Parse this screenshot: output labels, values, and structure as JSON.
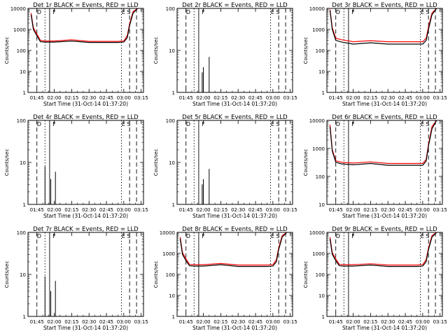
{
  "xlabel": "Start Time (31-Oct-14 01:37:20)",
  "ylabel": "Counts/sec",
  "x_ticks": [
    "01:45",
    "02:00",
    "02:15",
    "02:30",
    "02:45",
    "03:00",
    "03:15"
  ],
  "colors": {
    "events": "#000000",
    "lld": "#ff0000"
  },
  "chart_data": [
    {
      "type": "line",
      "title": "Det 1r BLACK = Events, RED = LLD",
      "y_scale": "log",
      "ylim": [
        1,
        10000
      ],
      "y_ticks": [
        "1",
        "10",
        "100",
        "1000",
        "10000"
      ],
      "markers": {
        "dash": [
          "01:45",
          "03:05",
          "03:11"
        ],
        "dot": [
          "01:52",
          "02:58"
        ],
        "solid": [
          "01:56"
        ]
      },
      "marker_labels": [
        {
          "at": "01:47",
          "text": "D"
        },
        {
          "at": "02:00",
          "text": "F"
        },
        {
          "at": "03:02",
          "text": "E S"
        }
      ],
      "series": [
        {
          "name": "Events",
          "x": [
            "01:40",
            "01:42",
            "01:45",
            "01:48",
            "01:52",
            "02:00",
            "02:15",
            "02:30",
            "02:45",
            "02:55",
            "03:00",
            "03:03",
            "03:05",
            "03:08",
            "03:12"
          ],
          "y": [
            5000,
            1000,
            500,
            260,
            250,
            250,
            280,
            240,
            240,
            240,
            250,
            400,
            1500,
            6000,
            10000
          ]
        },
        {
          "name": "LLD",
          "x": [
            "01:40",
            "01:42",
            "01:45",
            "01:48",
            "01:52",
            "02:00",
            "02:15",
            "02:30",
            "02:45",
            "02:55",
            "03:00",
            "03:03",
            "03:05",
            "03:08",
            "03:12"
          ],
          "y": [
            6000,
            1200,
            600,
            300,
            280,
            280,
            320,
            270,
            270,
            270,
            280,
            500,
            1800,
            7000,
            10000
          ]
        }
      ]
    },
    {
      "type": "line",
      "title": "Det 2r BLACK = Events, RED = LLD",
      "y_scale": "log",
      "ylim": [
        1,
        100
      ],
      "y_ticks": [
        "1",
        "10",
        "100"
      ],
      "markers": {
        "dash": [
          "01:45",
          "03:05",
          "03:11"
        ],
        "dot": [
          "01:52",
          "02:58"
        ],
        "solid": [
          "01:56"
        ]
      },
      "marker_labels": [
        {
          "at": "01:47",
          "text": "D"
        },
        {
          "at": "02:00",
          "text": "F"
        },
        {
          "at": "03:02",
          "text": "E S"
        }
      ],
      "spikes": [
        {
          "x": "01:59",
          "y": 3
        },
        {
          "x": "02:00",
          "y": 4
        },
        {
          "x": "02:05",
          "y": 7
        }
      ]
    },
    {
      "type": "line",
      "title": "Det 3r BLACK = Events, RED = LLD",
      "y_scale": "log",
      "ylim": [
        1,
        10000
      ],
      "y_ticks": [
        "1",
        "10",
        "100",
        "1000",
        "10000"
      ],
      "markers": {
        "dash": [
          "01:45",
          "03:05",
          "03:11"
        ],
        "dot": [
          "01:52",
          "02:58"
        ],
        "solid": [
          "01:56"
        ]
      },
      "marker_labels": [
        {
          "at": "01:47",
          "text": "D"
        },
        {
          "at": "02:00",
          "text": "F"
        },
        {
          "at": "03:02",
          "text": "E S"
        }
      ],
      "series": [
        {
          "name": "Events",
          "x": [
            "01:40",
            "01:42",
            "01:45",
            "01:50",
            "02:00",
            "02:15",
            "02:30",
            "02:45",
            "03:00",
            "03:03",
            "03:05",
            "03:08",
            "03:12"
          ],
          "y": [
            8000,
            1000,
            300,
            250,
            200,
            230,
            200,
            200,
            200,
            300,
            1000,
            5000,
            10000
          ]
        },
        {
          "name": "LLD",
          "x": [
            "01:40",
            "01:42",
            "01:45",
            "01:50",
            "02:00",
            "02:15",
            "02:30",
            "02:45",
            "03:00",
            "03:03",
            "03:05",
            "03:08",
            "03:12"
          ],
          "y": [
            9000,
            1200,
            380,
            320,
            260,
            290,
            260,
            260,
            260,
            380,
            1300,
            6000,
            10000
          ]
        }
      ]
    },
    {
      "type": "line",
      "title": "Det 4r BLACK = Events, RED = LLD",
      "y_scale": "log",
      "ylim": [
        1,
        100
      ],
      "y_ticks": [
        "1",
        "10",
        "100"
      ],
      "markers": {
        "dash": [
          "01:45",
          "03:05",
          "03:11"
        ],
        "dot": [
          "01:52",
          "02:58"
        ],
        "solid": [
          "01:56"
        ]
      },
      "marker_labels": [
        {
          "at": "01:47",
          "text": "D"
        },
        {
          "at": "02:00",
          "text": "F"
        },
        {
          "at": "03:02",
          "text": "E S"
        }
      ],
      "spikes": [
        {
          "x": "01:52",
          "y": 8
        },
        {
          "x": "01:57",
          "y": 4
        },
        {
          "x": "02:01",
          "y": 6
        }
      ]
    },
    {
      "type": "line",
      "title": "Det 5r BLACK = Events, RED = LLD",
      "y_scale": "log",
      "ylim": [
        1,
        100
      ],
      "y_ticks": [
        "1",
        "10",
        "100"
      ],
      "markers": {
        "dash": [
          "01:45",
          "03:05",
          "03:11"
        ],
        "dot": [
          "01:52",
          "02:58"
        ],
        "solid": [
          "01:56"
        ]
      },
      "marker_labels": [
        {
          "at": "01:47",
          "text": "D"
        },
        {
          "at": "02:00",
          "text": "F"
        },
        {
          "at": "03:02",
          "text": "E S"
        }
      ],
      "spikes": [
        {
          "x": "01:59",
          "y": 3
        },
        {
          "x": "02:00",
          "y": 4
        },
        {
          "x": "02:05",
          "y": 7
        }
      ]
    },
    {
      "type": "line",
      "title": "Det 6r BLACK = Events, RED = LLD",
      "y_scale": "log",
      "ylim": [
        10,
        10000
      ],
      "y_ticks": [
        "10",
        "100",
        "1000",
        "10000"
      ],
      "markers": {
        "dash": [
          "01:45",
          "03:05",
          "03:11"
        ],
        "dot": [
          "01:52",
          "02:58"
        ],
        "solid": [
          "01:56"
        ]
      },
      "marker_labels": [
        {
          "at": "01:47",
          "text": "D"
        },
        {
          "at": "02:00",
          "text": "F"
        },
        {
          "at": "03:02",
          "text": "E S"
        }
      ],
      "series": [
        {
          "name": "Events",
          "x": [
            "01:40",
            "01:42",
            "01:45",
            "01:50",
            "02:00",
            "02:15",
            "02:30",
            "02:45",
            "03:00",
            "03:03",
            "03:05",
            "03:08",
            "03:12"
          ],
          "y": [
            6000,
            800,
            320,
            280,
            260,
            290,
            250,
            250,
            250,
            350,
            1200,
            5000,
            10000
          ]
        },
        {
          "name": "LLD",
          "x": [
            "01:40",
            "01:42",
            "01:45",
            "01:50",
            "02:00",
            "02:15",
            "02:30",
            "02:45",
            "03:00",
            "03:03",
            "03:05",
            "03:08",
            "03:12"
          ],
          "y": [
            7000,
            900,
            360,
            320,
            300,
            330,
            290,
            290,
            290,
            400,
            1400,
            6000,
            10000
          ]
        }
      ]
    },
    {
      "type": "line",
      "title": "Det 7r BLACK = Events, RED = LLD",
      "y_scale": "log",
      "ylim": [
        1,
        100
      ],
      "y_ticks": [
        "1",
        "10",
        "100"
      ],
      "markers": {
        "dash": [
          "01:45",
          "03:05",
          "03:11"
        ],
        "dot": [
          "01:52",
          "02:58"
        ],
        "solid": [
          "01:56"
        ]
      },
      "marker_labels": [
        {
          "at": "01:47",
          "text": "D"
        },
        {
          "at": "02:00",
          "text": "F"
        },
        {
          "at": "03:02",
          "text": "E S"
        }
      ],
      "spikes": [
        {
          "x": "01:52",
          "y": 9
        },
        {
          "x": "01:57",
          "y": 4
        },
        {
          "x": "02:01",
          "y": 7
        }
      ]
    },
    {
      "type": "line",
      "title": "Det 8r BLACK = Events, RED = LLD",
      "y_scale": "log",
      "ylim": [
        1,
        10000
      ],
      "y_ticks": [
        "1",
        "10",
        "100",
        "1000",
        "10000"
      ],
      "markers": {
        "dash": [
          "01:45",
          "03:05",
          "03:11"
        ],
        "dot": [
          "01:52",
          "02:58"
        ],
        "solid": [
          "01:56"
        ]
      },
      "marker_labels": [
        {
          "at": "01:47",
          "text": "D"
        },
        {
          "at": "02:00",
          "text": "F"
        },
        {
          "at": "03:02",
          "text": "E S"
        }
      ],
      "series": [
        {
          "name": "Events",
          "x": [
            "01:40",
            "01:42",
            "01:45",
            "01:48",
            "01:52",
            "02:00",
            "02:15",
            "02:30",
            "02:45",
            "02:55",
            "03:00",
            "03:03",
            "03:05",
            "03:08",
            "03:12"
          ],
          "y": [
            5000,
            900,
            450,
            260,
            250,
            250,
            290,
            240,
            240,
            240,
            250,
            400,
            1500,
            6000,
            10000
          ]
        },
        {
          "name": "LLD",
          "x": [
            "01:40",
            "01:42",
            "01:45",
            "01:48",
            "01:52",
            "02:00",
            "02:15",
            "02:30",
            "02:45",
            "02:55",
            "03:00",
            "03:03",
            "03:05",
            "03:08",
            "03:12"
          ],
          "y": [
            6000,
            1100,
            550,
            300,
            290,
            290,
            330,
            280,
            280,
            280,
            290,
            500,
            1800,
            7000,
            10000
          ]
        }
      ]
    },
    {
      "type": "line",
      "title": "Det 9r BLACK = Events, RED = LLD",
      "y_scale": "log",
      "ylim": [
        1,
        10000
      ],
      "y_ticks": [
        "1",
        "10",
        "100",
        "1000",
        "10000"
      ],
      "markers": {
        "dash": [
          "01:45",
          "03:05",
          "03:11"
        ],
        "dot": [
          "01:52",
          "02:58"
        ],
        "solid": [
          "01:56"
        ]
      },
      "marker_labels": [
        {
          "at": "01:47",
          "text": "D"
        },
        {
          "at": "02:00",
          "text": "F"
        },
        {
          "at": "03:02",
          "text": "E S"
        }
      ],
      "series": [
        {
          "name": "Events",
          "x": [
            "01:40",
            "01:42",
            "01:45",
            "01:48",
            "01:52",
            "02:00",
            "02:15",
            "02:30",
            "02:45",
            "02:55",
            "03:00",
            "03:03",
            "03:05",
            "03:08",
            "03:12"
          ],
          "y": [
            5000,
            900,
            450,
            260,
            250,
            250,
            280,
            240,
            240,
            240,
            250,
            400,
            1500,
            6000,
            10000
          ]
        },
        {
          "name": "LLD",
          "x": [
            "01:40",
            "01:42",
            "01:45",
            "01:48",
            "01:52",
            "02:00",
            "02:15",
            "02:30",
            "02:45",
            "02:55",
            "03:00",
            "03:03",
            "03:05",
            "03:08",
            "03:12"
          ],
          "y": [
            6000,
            1100,
            550,
            300,
            290,
            290,
            320,
            280,
            280,
            280,
            290,
            500,
            1800,
            7000,
            10000
          ]
        }
      ]
    }
  ]
}
